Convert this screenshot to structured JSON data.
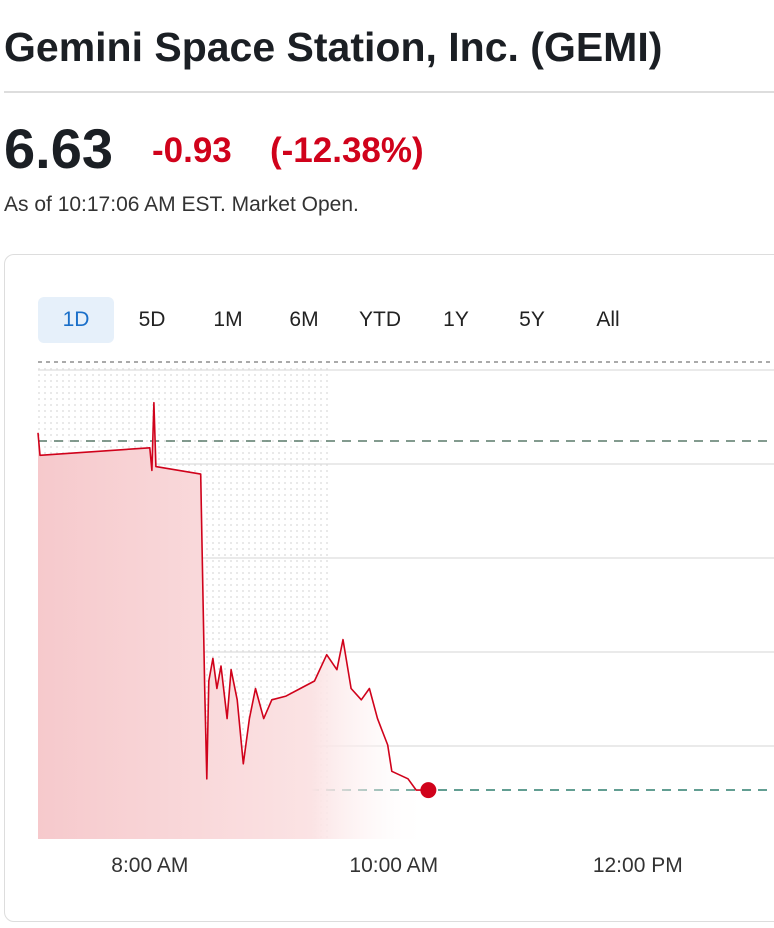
{
  "header": {
    "title": "Gemini Space Station, Inc. (GEMI)",
    "price": "6.63",
    "change": "-0.93",
    "change_percent": "(-12.38%)",
    "timestamp": "As of 10:17:06 AM EST. Market Open."
  },
  "tabs": [
    "1D",
    "5D",
    "1M",
    "6M",
    "YTD",
    "1Y",
    "5Y",
    "All"
  ],
  "chart_data": {
    "type": "line",
    "color": "#d0021b",
    "x": [
      425,
      426,
      480,
      481,
      482,
      483,
      505,
      507,
      508,
      509,
      511,
      513,
      515,
      518,
      520,
      523,
      526,
      529,
      532,
      536,
      540,
      547,
      554,
      561,
      567,
      572,
      575,
      579,
      584,
      588,
      592,
      597,
      599,
      607,
      611,
      617
    ],
    "values": [
      7.58,
      7.52,
      7.54,
      7.48,
      7.66,
      7.49,
      7.47,
      6.9,
      6.66,
      6.92,
      6.98,
      6.9,
      6.96,
      6.82,
      6.95,
      6.87,
      6.7,
      6.82,
      6.9,
      6.82,
      6.87,
      6.88,
      6.9,
      6.92,
      6.99,
      6.95,
      7.03,
      6.9,
      6.87,
      6.9,
      6.82,
      6.75,
      6.68,
      6.66,
      6.63,
      6.63
    ],
    "xlim": [
      425,
      787
    ],
    "ylim": [
      6.5,
      7.8
    ],
    "xticks": [
      {
        "value": 480,
        "label": "8:00 AM"
      },
      {
        "value": 600,
        "label": "10:00 AM"
      },
      {
        "value": 720,
        "label": "12:00 PM"
      }
    ]
  }
}
